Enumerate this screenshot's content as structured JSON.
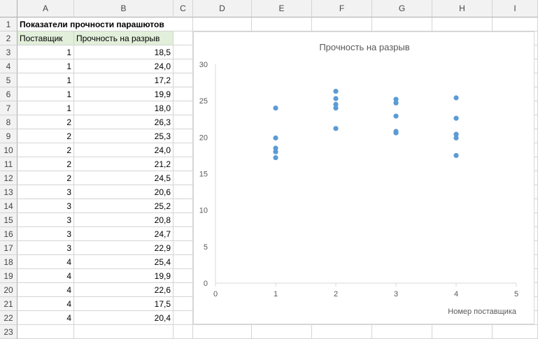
{
  "sheet": {
    "columns": [
      "A",
      "B",
      "C",
      "D",
      "E",
      "F",
      "G",
      "H",
      "I"
    ],
    "row_numbers": [
      "1",
      "2",
      "3",
      "4",
      "5",
      "6",
      "7",
      "8",
      "9",
      "10",
      "11",
      "12",
      "13",
      "14",
      "15",
      "16",
      "17",
      "18",
      "19",
      "20",
      "21",
      "22",
      "23"
    ],
    "title": "Показатели прочности парашютов",
    "headers": {
      "supplier": "Поставщик",
      "strength": "Прочность на разрыв"
    },
    "rows": [
      {
        "supplier": "1",
        "strength": "18,5"
      },
      {
        "supplier": "1",
        "strength": "24,0"
      },
      {
        "supplier": "1",
        "strength": "17,2"
      },
      {
        "supplier": "1",
        "strength": "19,9"
      },
      {
        "supplier": "1",
        "strength": "18,0"
      },
      {
        "supplier": "2",
        "strength": "26,3"
      },
      {
        "supplier": "2",
        "strength": "25,3"
      },
      {
        "supplier": "2",
        "strength": "24,0"
      },
      {
        "supplier": "2",
        "strength": "21,2"
      },
      {
        "supplier": "2",
        "strength": "24,5"
      },
      {
        "supplier": "3",
        "strength": "20,6"
      },
      {
        "supplier": "3",
        "strength": "25,2"
      },
      {
        "supplier": "3",
        "strength": "20,8"
      },
      {
        "supplier": "3",
        "strength": "24,7"
      },
      {
        "supplier": "3",
        "strength": "22,9"
      },
      {
        "supplier": "4",
        "strength": "25,4"
      },
      {
        "supplier": "4",
        "strength": "19,9"
      },
      {
        "supplier": "4",
        "strength": "22,6"
      },
      {
        "supplier": "4",
        "strength": "17,5"
      },
      {
        "supplier": "4",
        "strength": "20,4"
      }
    ]
  },
  "chart_data": {
    "type": "scatter",
    "title": "Прочность на разрыв",
    "xlabel": "Номер поставщика",
    "ylabel": "",
    "xlim": [
      0,
      5
    ],
    "ylim": [
      0,
      30
    ],
    "xticks": [
      0,
      1,
      2,
      3,
      4,
      5
    ],
    "yticks": [
      0,
      5,
      10,
      15,
      20,
      25,
      30
    ],
    "grid": false,
    "marker_color": "#5b9bd5",
    "x": [
      1,
      1,
      1,
      1,
      1,
      2,
      2,
      2,
      2,
      2,
      3,
      3,
      3,
      3,
      3,
      4,
      4,
      4,
      4,
      4
    ],
    "y": [
      18.5,
      24.0,
      17.2,
      19.9,
      18.0,
      26.3,
      25.3,
      24.0,
      21.2,
      24.5,
      20.6,
      25.2,
      20.8,
      24.7,
      22.9,
      25.4,
      19.9,
      22.6,
      17.5,
      20.4
    ]
  }
}
